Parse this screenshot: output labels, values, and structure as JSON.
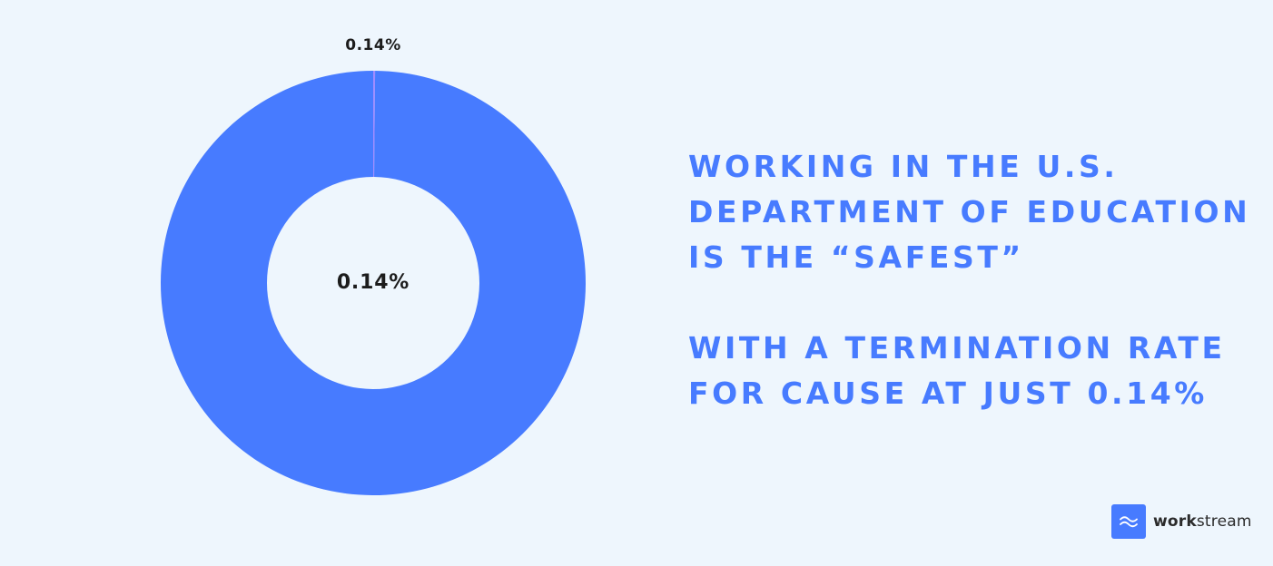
{
  "chart_data": {
    "type": "pie",
    "style": "donut",
    "slices": [
      {
        "label": "0.14%",
        "value": 0.14,
        "color": "#a08bff"
      },
      {
        "value": 99.86,
        "color": "#477bff"
      }
    ],
    "center_label": "0.14%",
    "outer_label": "0.14%"
  },
  "headline": {
    "lines_1": [
      "WORKING IN THE U.S.",
      "DEPARTMENT OF EDUCATION",
      "IS THE “SAFEST”"
    ],
    "lines_2": [
      "WITH A TERMINATION RATE",
      "FOR CAUSE AT JUST 0.14%"
    ]
  },
  "logo": {
    "bold": "work",
    "rest": "stream",
    "icon": "wave-icon"
  },
  "colors": {
    "accent": "#477bff",
    "highlight": "#a08bff",
    "background": "#eef6fd"
  }
}
